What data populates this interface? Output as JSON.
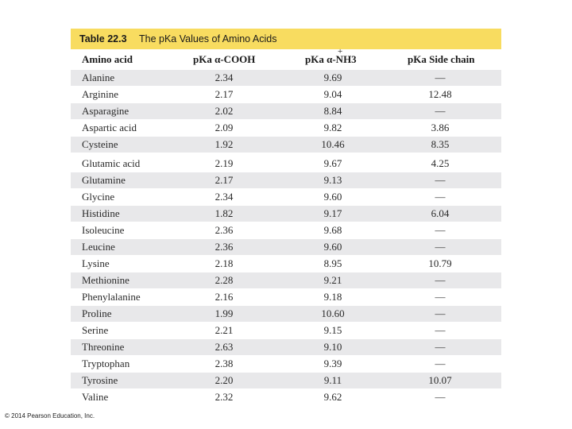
{
  "table": {
    "label": "Table 22.3",
    "title": "The pKa Values of Amino Acids",
    "headers": {
      "amino_acid": "Amino acid",
      "cooh": "pKa α-COOH",
      "nh3": "pKa α-NH3",
      "nh3_charge": "+",
      "side_chain": "pKa Side chain"
    },
    "rows": [
      {
        "name": "Alanine",
        "cooh": "2.34",
        "nh3": "9.69",
        "side": "—"
      },
      {
        "name": "Arginine",
        "cooh": "2.17",
        "nh3": "9.04",
        "side": "12.48"
      },
      {
        "name": "Asparagine",
        "cooh": "2.02",
        "nh3": "8.84",
        "side": "—"
      },
      {
        "name": "Aspartic acid",
        "cooh": "2.09",
        "nh3": "9.82",
        "side": "3.86"
      },
      {
        "name": "Cysteine",
        "cooh": "1.92",
        "nh3": "10.46",
        "side": "8.35"
      },
      {
        "name": "Glutamic acid",
        "cooh": "2.19",
        "nh3": "9.67",
        "side": "4.25"
      },
      {
        "name": "Glutamine",
        "cooh": "2.17",
        "nh3": "9.13",
        "side": "—"
      },
      {
        "name": "Glycine",
        "cooh": "2.34",
        "nh3": "9.60",
        "side": "—"
      },
      {
        "name": "Histidine",
        "cooh": "1.82",
        "nh3": "9.17",
        "side": "6.04"
      },
      {
        "name": "Isoleucine",
        "cooh": "2.36",
        "nh3": "9.68",
        "side": "—"
      },
      {
        "name": "Leucine",
        "cooh": "2.36",
        "nh3": "9.60",
        "side": "—"
      },
      {
        "name": "Lysine",
        "cooh": "2.18",
        "nh3": "8.95",
        "side": "10.79"
      },
      {
        "name": "Methionine",
        "cooh": "2.28",
        "nh3": "9.21",
        "side": "—"
      },
      {
        "name": "Phenylalanine",
        "cooh": "2.16",
        "nh3": "9.18",
        "side": "—"
      },
      {
        "name": "Proline",
        "cooh": "1.99",
        "nh3": "10.60",
        "side": "—"
      },
      {
        "name": "Serine",
        "cooh": "2.21",
        "nh3": "9.15",
        "side": "—"
      },
      {
        "name": "Threonine",
        "cooh": "2.63",
        "nh3": "9.10",
        "side": "—"
      },
      {
        "name": "Tryptophan",
        "cooh": "2.38",
        "nh3": "9.39",
        "side": "—"
      },
      {
        "name": "Tyrosine",
        "cooh": "2.20",
        "nh3": "9.11",
        "side": "10.07"
      },
      {
        "name": "Valine",
        "cooh": "2.32",
        "nh3": "9.62",
        "side": "—"
      }
    ]
  },
  "footer": {
    "copyright": "© 2014 Pearson Education, Inc."
  },
  "colors": {
    "title_bar": "#f8dc60",
    "row_shade": "#e8e8ea"
  }
}
